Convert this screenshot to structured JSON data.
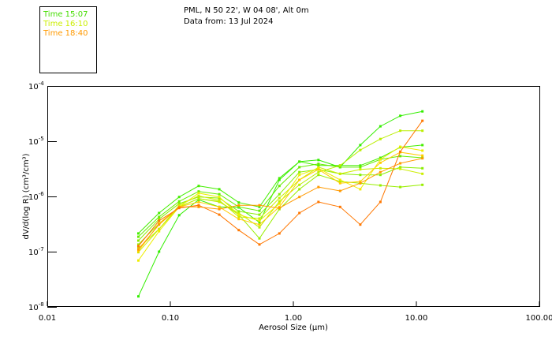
{
  "header": {
    "line1": "PML, N 50 22', W 04 08', Alt 0m",
    "line2": "Data from: 13 Jul 2024"
  },
  "legend": [
    {
      "label": "Time 15:07",
      "color": "#44dd00"
    },
    {
      "label": "Time 16:10",
      "color": "#ccee00"
    },
    {
      "label": "Time 18:40",
      "color": "#ff9900"
    }
  ],
  "chart_data": {
    "type": "line",
    "xscale": "log",
    "yscale": "log",
    "xlabel": "Aerosol Size (µm)",
    "ylabel_main": "dV/d(log R)  (cm",
    "ylabel_units": "³/cm³)",
    "xlim": [
      0.01,
      100
    ],
    "ylim": [
      1e-08,
      0.0001
    ],
    "xticks": [
      "0.01",
      "0.10",
      "1.00",
      "10.00",
      "100.00"
    ],
    "yticks": [
      {
        "base": "10",
        "exp": "-4"
      },
      {
        "base": "10",
        "exp": "-5"
      },
      {
        "base": "10",
        "exp": "-6"
      },
      {
        "base": "10",
        "exp": "-7"
      },
      {
        "base": "10",
        "exp": "-8"
      }
    ],
    "x": [
      0.055,
      0.081,
      0.118,
      0.17,
      0.25,
      0.36,
      0.53,
      0.77,
      1.12,
      1.6,
      2.4,
      3.5,
      5.1,
      7.4,
      11.2
    ],
    "y_log10_note": "values are log10 of dV/d(log R)",
    "series": [
      {
        "name": "Time 15:07",
        "color": "#33ee00",
        "y_log10": [
          -7.81,
          -7.0,
          -6.34,
          -6.06,
          -6.19,
          -6.2,
          -6.47,
          -5.7,
          -5.37,
          -5.34,
          -5.47,
          -5.07,
          -4.73,
          -4.54,
          -4.46
        ]
      },
      {
        "name": "",
        "color": "#44ee00",
        "y_log10": [
          -6.67,
          -6.3,
          -6.01,
          -5.81,
          -5.87,
          -6.11,
          -6.19,
          -5.67,
          -5.37,
          -5.44,
          -5.44,
          -5.44,
          -5.3,
          -5.11,
          -5.07
        ]
      },
      {
        "name": "",
        "color": "#66ee00",
        "y_log10": [
          -6.73,
          -6.37,
          -6.09,
          -5.91,
          -5.96,
          -6.19,
          -6.26,
          -5.81,
          -5.47,
          -5.41,
          -5.47,
          -5.47,
          -5.33,
          -5.27,
          -5.3
        ]
      },
      {
        "name": "",
        "color": "#88ee00",
        "y_log10": [
          -6.8,
          -6.41,
          -6.13,
          -6.01,
          -6.03,
          -6.27,
          -6.33,
          -5.96,
          -5.56,
          -5.51,
          -5.59,
          -5.61,
          -5.61,
          -5.47,
          -5.49
        ]
      },
      {
        "name": "",
        "color": "#99ee00",
        "y_log10": [
          -6.87,
          -6.49,
          -6.19,
          -6.04,
          -6.09,
          -6.33,
          -6.76,
          -6.23,
          -5.87,
          -5.61,
          -5.73,
          -5.76,
          -5.8,
          -5.83,
          -5.79
        ]
      },
      {
        "name": "",
        "color": "#bbee00",
        "y_log10": [
          -6.94,
          -6.59,
          -6.19,
          -6.04,
          -6.1,
          -6.3,
          -6.56,
          -6.09,
          -5.79,
          -5.56,
          -5.44,
          -5.16,
          -4.96,
          -4.81,
          -4.81
        ]
      },
      {
        "name": "Time 16:10",
        "color": "#ccee00",
        "y_log10": [
          -7.01,
          -6.59,
          -6.16,
          -5.99,
          -6.07,
          -6.37,
          -6.4,
          -6.03,
          -5.7,
          -5.47,
          -5.59,
          -5.51,
          -5.49,
          -5.5,
          -5.59
        ]
      },
      {
        "name": "",
        "color": "#eeee00",
        "y_log10": [
          -7.16,
          -6.63,
          -6.19,
          -5.94,
          -6.01,
          -6.33,
          -6.44,
          -6.13,
          -5.61,
          -5.49,
          -5.7,
          -5.87,
          -5.33,
          -5.1,
          -5.17
        ]
      },
      {
        "name": "",
        "color": "#ffcc00",
        "y_log10": [
          -6.99,
          -6.49,
          -6.19,
          -6.1,
          -6.19,
          -6.41,
          -6.51,
          -6.19,
          -5.7,
          -5.51,
          -5.76,
          -5.73,
          -5.39,
          -5.2,
          -5.26
        ]
      },
      {
        "name": "Time 18:40",
        "color": "#ff9900",
        "y_log10": [
          -6.96,
          -6.51,
          -6.19,
          -6.19,
          -6.23,
          -6.16,
          -6.16,
          -6.21,
          -6.01,
          -5.83,
          -5.9,
          -5.76,
          -5.56,
          -5.4,
          -5.31
        ]
      },
      {
        "name": "",
        "color": "#ff7700",
        "y_log10": [
          -6.9,
          -6.44,
          -6.21,
          -6.16,
          -6.33,
          -6.61,
          -6.87,
          -6.67,
          -6.3,
          -6.1,
          -6.19,
          -6.51,
          -6.1,
          -5.19,
          -4.63
        ]
      }
    ]
  }
}
